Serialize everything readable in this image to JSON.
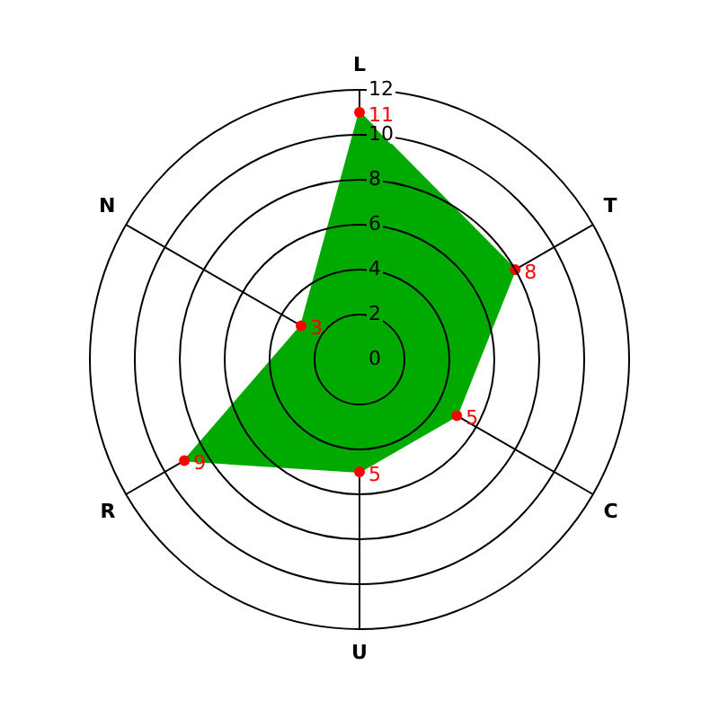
{
  "chart_data": {
    "type": "radar",
    "categories": [
      "L",
      "T",
      "C",
      "U",
      "R",
      "N"
    ],
    "series": [
      {
        "color": "#00aa00",
        "colors": [
          "#ff0000",
          "#ff0000",
          "#ff0000",
          "#ff0000",
          "#ff0000",
          "#ff0000"
        ],
        "values": [
          11,
          8,
          5,
          5,
          9,
          3
        ]
      }
    ],
    "ylim": [
      0,
      12
    ],
    "yticks": [
      0,
      2,
      4,
      6,
      8,
      10,
      12
    ],
    "grid": true,
    "marker": "circle",
    "data_labels": true
  }
}
